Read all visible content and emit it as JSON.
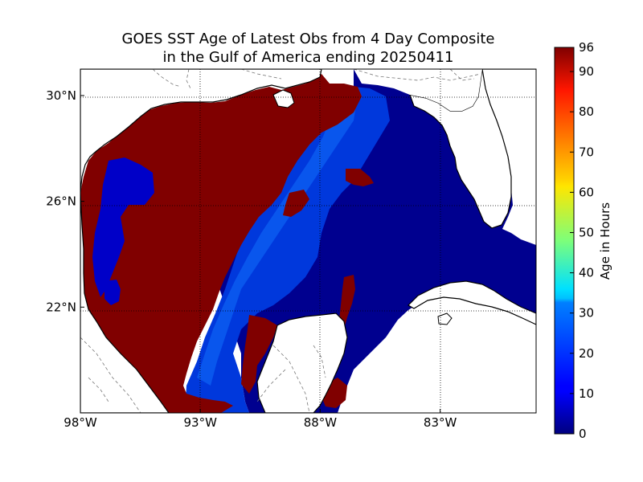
{
  "title": {
    "line1": "GOES SST Age of Latest Obs from 4 Day Composite",
    "line2": "in the Gulf of America ending 20250411"
  },
  "map": {
    "lon_range": [
      -98,
      -79
    ],
    "lat_range": [
      18,
      31
    ],
    "lon_ticks": [
      {
        "value": -98,
        "label": "98°W"
      },
      {
        "value": -93,
        "label": "93°W"
      },
      {
        "value": -88,
        "label": "88°W"
      },
      {
        "value": -83,
        "label": "83°W"
      }
    ],
    "lat_ticks": [
      {
        "value": 30,
        "label": "30°N"
      },
      {
        "value": 26,
        "label": "26°N"
      },
      {
        "value": 22,
        "label": "22°N"
      }
    ],
    "colors": {
      "old_data": "#800000",
      "deep_blue": "#00008f",
      "mid_blue": "#0035d8",
      "light_blue": "#0a5cf0",
      "land": "#ffffff"
    }
  },
  "colorbar": {
    "label": "Age in Hours",
    "min": 0,
    "max": 96,
    "colormap": "jet",
    "ticks": [
      {
        "value": 96,
        "label": "96"
      },
      {
        "value": 90,
        "label": "90"
      },
      {
        "value": 80,
        "label": "80"
      },
      {
        "value": 70,
        "label": "70"
      },
      {
        "value": 60,
        "label": "60"
      },
      {
        "value": 50,
        "label": "50"
      },
      {
        "value": 40,
        "label": "40"
      },
      {
        "value": 30,
        "label": "30"
      },
      {
        "value": 20,
        "label": "20"
      },
      {
        "value": 10,
        "label": "10"
      },
      {
        "value": 0,
        "label": "0"
      }
    ]
  }
}
